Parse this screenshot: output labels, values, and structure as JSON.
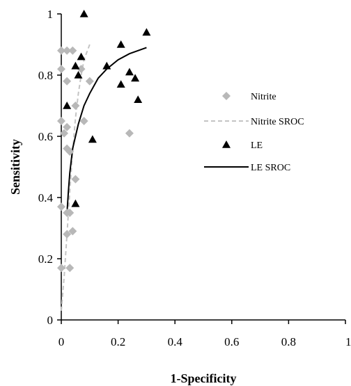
{
  "chart_data": {
    "type": "scatter",
    "xlabel": "1-Specificity",
    "ylabel": "Sensitivity",
    "xlim": [
      0,
      1
    ],
    "ylim": [
      0,
      1
    ],
    "x_ticks": [
      "0",
      "0.2",
      "0.4",
      "0.6",
      "0.8",
      "1"
    ],
    "y_ticks": [
      "0",
      "0.2",
      "0.4",
      "0.6",
      "0.8",
      "1"
    ],
    "grid": false,
    "legend_position": "right",
    "series": [
      {
        "name": "Nitrite",
        "kind": "points",
        "marker": "diamond",
        "color": "#b8b8b8",
        "points": [
          [
            0.0,
            0.88
          ],
          [
            0.0,
            0.82
          ],
          [
            0.0,
            0.65
          ],
          [
            0.0,
            0.37
          ],
          [
            0.0,
            0.17
          ],
          [
            0.01,
            0.61
          ],
          [
            0.02,
            0.88
          ],
          [
            0.02,
            0.78
          ],
          [
            0.02,
            0.63
          ],
          [
            0.02,
            0.56
          ],
          [
            0.03,
            0.55
          ],
          [
            0.02,
            0.35
          ],
          [
            0.03,
            0.35
          ],
          [
            0.02,
            0.28
          ],
          [
            0.03,
            0.17
          ],
          [
            0.04,
            0.88
          ],
          [
            0.04,
            0.29
          ],
          [
            0.05,
            0.7
          ],
          [
            0.05,
            0.46
          ],
          [
            0.07,
            0.82
          ],
          [
            0.08,
            0.65
          ],
          [
            0.1,
            0.78
          ],
          [
            0.24,
            0.61
          ]
        ]
      },
      {
        "name": "Nitrite SROC",
        "kind": "line",
        "style": "dashed",
        "color": "#c4c4c4",
        "points": [
          [
            0.0,
            0.03
          ],
          [
            0.01,
            0.14
          ],
          [
            0.02,
            0.28
          ],
          [
            0.03,
            0.42
          ],
          [
            0.04,
            0.55
          ],
          [
            0.05,
            0.66
          ],
          [
            0.06,
            0.74
          ],
          [
            0.07,
            0.8
          ],
          [
            0.08,
            0.85
          ],
          [
            0.1,
            0.9
          ]
        ]
      },
      {
        "name": "LE",
        "kind": "points",
        "marker": "triangle",
        "color": "#000000",
        "points": [
          [
            0.08,
            1.0
          ],
          [
            0.3,
            0.94
          ],
          [
            0.21,
            0.9
          ],
          [
            0.07,
            0.86
          ],
          [
            0.16,
            0.83
          ],
          [
            0.05,
            0.83
          ],
          [
            0.24,
            0.81
          ],
          [
            0.06,
            0.8
          ],
          [
            0.26,
            0.79
          ],
          [
            0.21,
            0.77
          ],
          [
            0.27,
            0.72
          ],
          [
            0.02,
            0.7
          ],
          [
            0.11,
            0.59
          ],
          [
            0.05,
            0.38
          ]
        ]
      },
      {
        "name": "LE SROC",
        "kind": "line",
        "style": "solid",
        "color": "#000000",
        "points": [
          [
            0.02,
            0.35
          ],
          [
            0.025,
            0.42
          ],
          [
            0.03,
            0.48
          ],
          [
            0.04,
            0.56
          ],
          [
            0.06,
            0.64
          ],
          [
            0.08,
            0.7
          ],
          [
            0.1,
            0.74
          ],
          [
            0.13,
            0.79
          ],
          [
            0.16,
            0.82
          ],
          [
            0.2,
            0.85
          ],
          [
            0.24,
            0.87
          ],
          [
            0.3,
            0.89
          ]
        ]
      }
    ]
  }
}
